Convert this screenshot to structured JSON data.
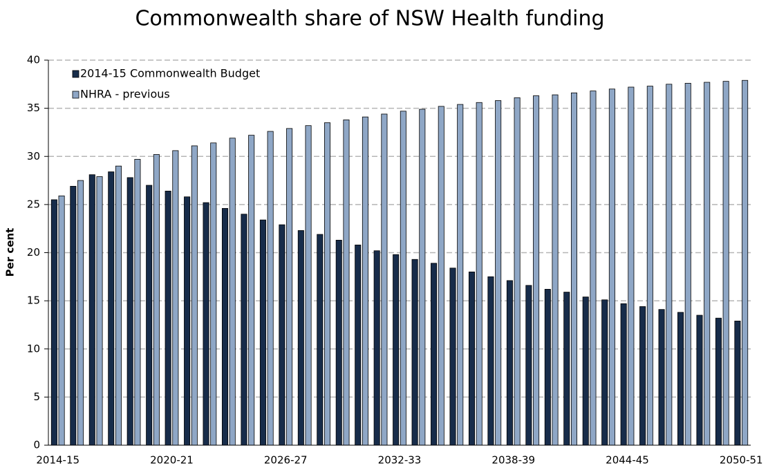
{
  "chart_data": {
    "type": "bar",
    "title": "Commonwealth share of NSW Health funding",
    "y_label": "Per cent",
    "categories": [
      "2014-15",
      null,
      null,
      null,
      null,
      null,
      "2020-21",
      null,
      null,
      null,
      null,
      null,
      "2026-27",
      null,
      null,
      null,
      null,
      null,
      "2032-33",
      null,
      null,
      null,
      null,
      null,
      "2038-39",
      null,
      null,
      null,
      null,
      null,
      "2044-45",
      null,
      null,
      null,
      null,
      null,
      "2050-51"
    ],
    "series": [
      {
        "name": "2014-15 Commonwealth Budget",
        "color": "#172c4a",
        "values": [
          25.5,
          26.9,
          28.1,
          28.4,
          27.8,
          27.0,
          26.4,
          25.8,
          25.2,
          24.6,
          24.0,
          23.4,
          22.9,
          22.3,
          21.9,
          21.3,
          20.8,
          20.2,
          19.8,
          19.3,
          18.9,
          18.4,
          18.0,
          17.5,
          17.1,
          16.6,
          16.2,
          15.9,
          15.4,
          15.1,
          14.7,
          14.4,
          14.1,
          13.8,
          13.5,
          13.2,
          12.9
        ]
      },
      {
        "name": "NHRA - previous",
        "color": "#8fa7c6",
        "values": [
          25.9,
          27.5,
          27.9,
          29.0,
          29.7,
          30.2,
          30.6,
          31.1,
          31.4,
          31.9,
          32.2,
          32.6,
          32.9,
          33.2,
          33.5,
          33.8,
          34.1,
          34.4,
          34.7,
          34.9,
          35.2,
          35.4,
          35.6,
          35.8,
          36.1,
          36.3,
          36.4,
          36.6,
          36.8,
          37.0,
          37.2,
          37.3,
          37.5,
          37.6,
          37.7,
          37.8,
          37.9
        ]
      }
    ],
    "ylim": [
      0,
      40
    ],
    "yticks": [
      0,
      5,
      10,
      15,
      20,
      25,
      30,
      35,
      40
    ],
    "grid": true,
    "legend": "upper left"
  }
}
